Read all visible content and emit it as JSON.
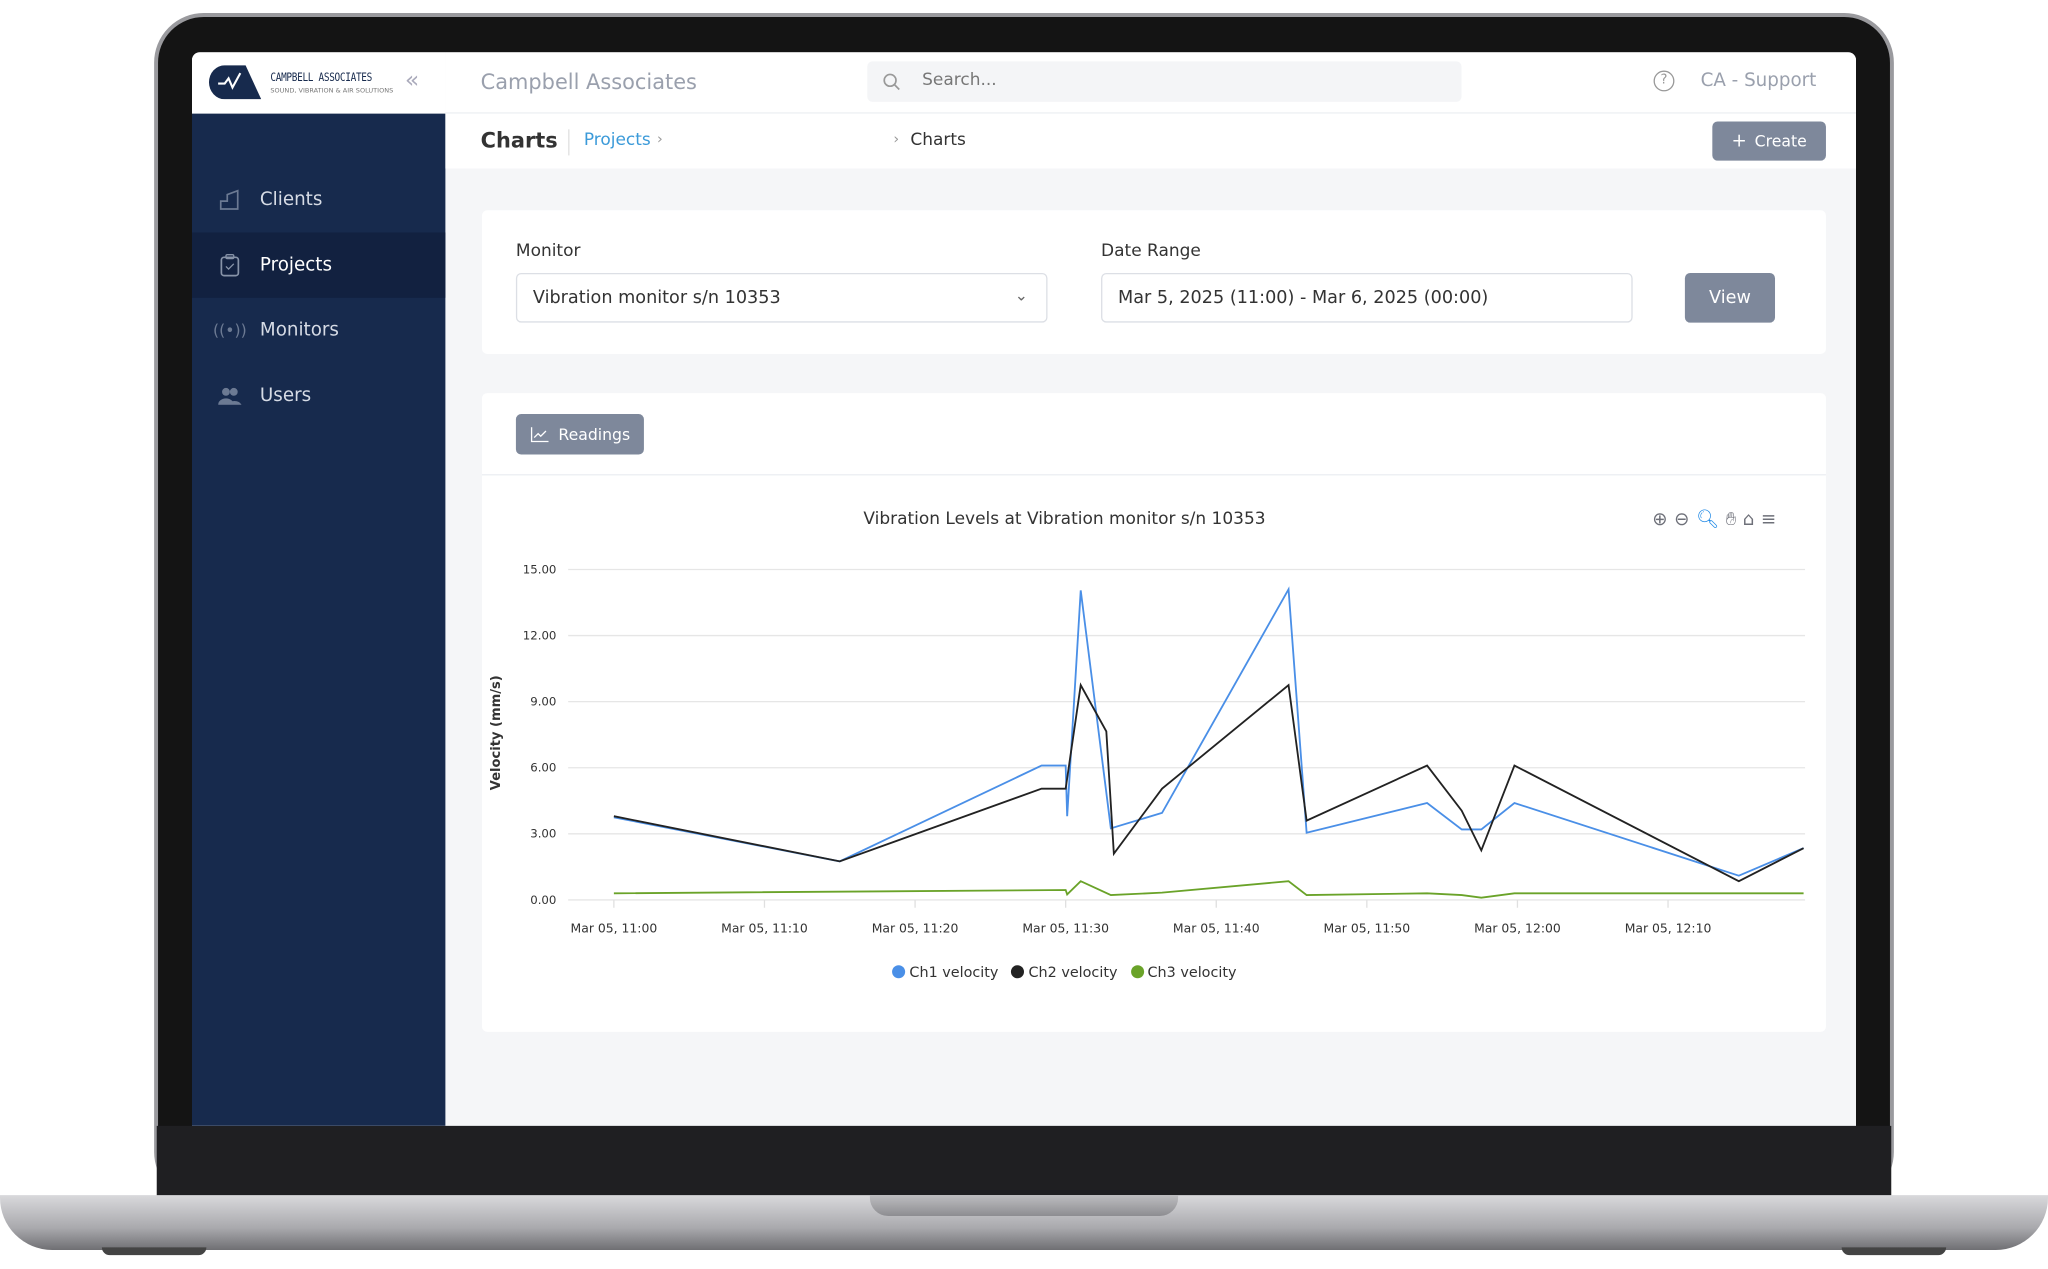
{
  "brand": {
    "logo_name": "CAMPBELL ASSOCIATES",
    "logo_tagline": "SOUND, VIBRATION & AIR SOLUTIONS",
    "app_title": "Campbell Associates"
  },
  "search": {
    "placeholder": "Search..."
  },
  "user": {
    "label": "CA - Support"
  },
  "sidebar": {
    "items": [
      {
        "label": "Clients",
        "icon": "building-icon",
        "active": false
      },
      {
        "label": "Projects",
        "icon": "clipboard-check-icon",
        "active": true
      },
      {
        "label": "Monitors",
        "icon": "antenna-icon",
        "active": false
      },
      {
        "label": "Users",
        "icon": "users-icon",
        "active": false
      }
    ]
  },
  "header": {
    "title": "Charts",
    "breadcrumb": [
      "Projects",
      "Charts"
    ],
    "create_label": "Create"
  },
  "filters": {
    "monitor_label": "Monitor",
    "monitor_value": "Vibration monitor s/n 10353",
    "date_label": "Date Range",
    "date_value": "Mar 5, 2025 (11:00) - Mar 6, 2025 (00:00)",
    "view_label": "View"
  },
  "tabs": {
    "readings_label": "Readings"
  },
  "chart_data": {
    "type": "line",
    "title": "Vibration Levels at Vibration monitor s/n 10353",
    "ylabel": "Velocity (mm/s)",
    "xlabel": "",
    "ylim": [
      0,
      15
    ],
    "yticks": [
      "0.00",
      "3.00",
      "6.00",
      "9.00",
      "12.00",
      "15.00"
    ],
    "xticks": [
      "Mar 05, 11:00",
      "Mar 05, 11:10",
      "Mar 05, 11:20",
      "Mar 05, 11:30",
      "Mar 05, 11:40",
      "Mar 05, 11:50",
      "Mar 05, 12:00",
      "Mar 05, 12:10"
    ],
    "xrange": [
      "11:00:00",
      "12:19:00"
    ],
    "grid": true,
    "legend_position": "bottom",
    "series": [
      {
        "name": "Ch1 velocity",
        "color": "#4a8fe7",
        "points": [
          [
            "11:00:00",
            3.75
          ],
          [
            "11:15:00",
            1.75
          ],
          [
            "11:28:24",
            6.1
          ],
          [
            "11:30:00",
            6.1
          ],
          [
            "11:30:06",
            3.8
          ],
          [
            "11:31:00",
            14.05
          ],
          [
            "11:33:00",
            3.25
          ],
          [
            "11:36:24",
            3.95
          ],
          [
            "11:44:48",
            14.1
          ],
          [
            "11:46:00",
            3.05
          ],
          [
            "11:54:00",
            4.4
          ],
          [
            "11:56:18",
            3.2
          ],
          [
            "11:57:36",
            3.2
          ],
          [
            "11:59:48",
            4.4
          ],
          [
            "12:14:42",
            1.1
          ],
          [
            "12:19:00",
            2.35
          ]
        ]
      },
      {
        "name": "Ch2 velocity",
        "color": "#222222",
        "points": [
          [
            "11:00:00",
            3.8
          ],
          [
            "11:15:00",
            1.75
          ],
          [
            "11:28:24",
            5.05
          ],
          [
            "11:30:00",
            5.05
          ],
          [
            "11:31:00",
            9.75
          ],
          [
            "11:32:42",
            7.65
          ],
          [
            "11:33:12",
            2.1
          ],
          [
            "11:36:24",
            5.05
          ],
          [
            "11:44:48",
            9.75
          ],
          [
            "11:46:00",
            3.6
          ],
          [
            "11:54:00",
            6.1
          ],
          [
            "11:56:18",
            4.05
          ],
          [
            "11:57:36",
            2.25
          ],
          [
            "11:59:48",
            6.1
          ],
          [
            "12:14:42",
            0.85
          ],
          [
            "12:19:00",
            2.35
          ]
        ]
      },
      {
        "name": "Ch3 velocity",
        "color": "#6aa329",
        "points": [
          [
            "11:00:00",
            0.3
          ],
          [
            "11:30:00",
            0.45
          ],
          [
            "11:30:06",
            0.25
          ],
          [
            "11:31:00",
            0.85
          ],
          [
            "11:33:00",
            0.22
          ],
          [
            "11:36:24",
            0.33
          ],
          [
            "11:44:48",
            0.85
          ],
          [
            "11:46:00",
            0.22
          ],
          [
            "11:54:00",
            0.3
          ],
          [
            "11:56:18",
            0.22
          ],
          [
            "11:57:36",
            0.1
          ],
          [
            "11:59:48",
            0.3
          ],
          [
            "12:19:00",
            0.3
          ]
        ]
      }
    ]
  },
  "chart_toolbar": [
    "zoom-in-icon",
    "zoom-out-icon",
    "selection-zoom-icon",
    "pan-hand-icon",
    "home-reset-icon",
    "menu-icon"
  ]
}
